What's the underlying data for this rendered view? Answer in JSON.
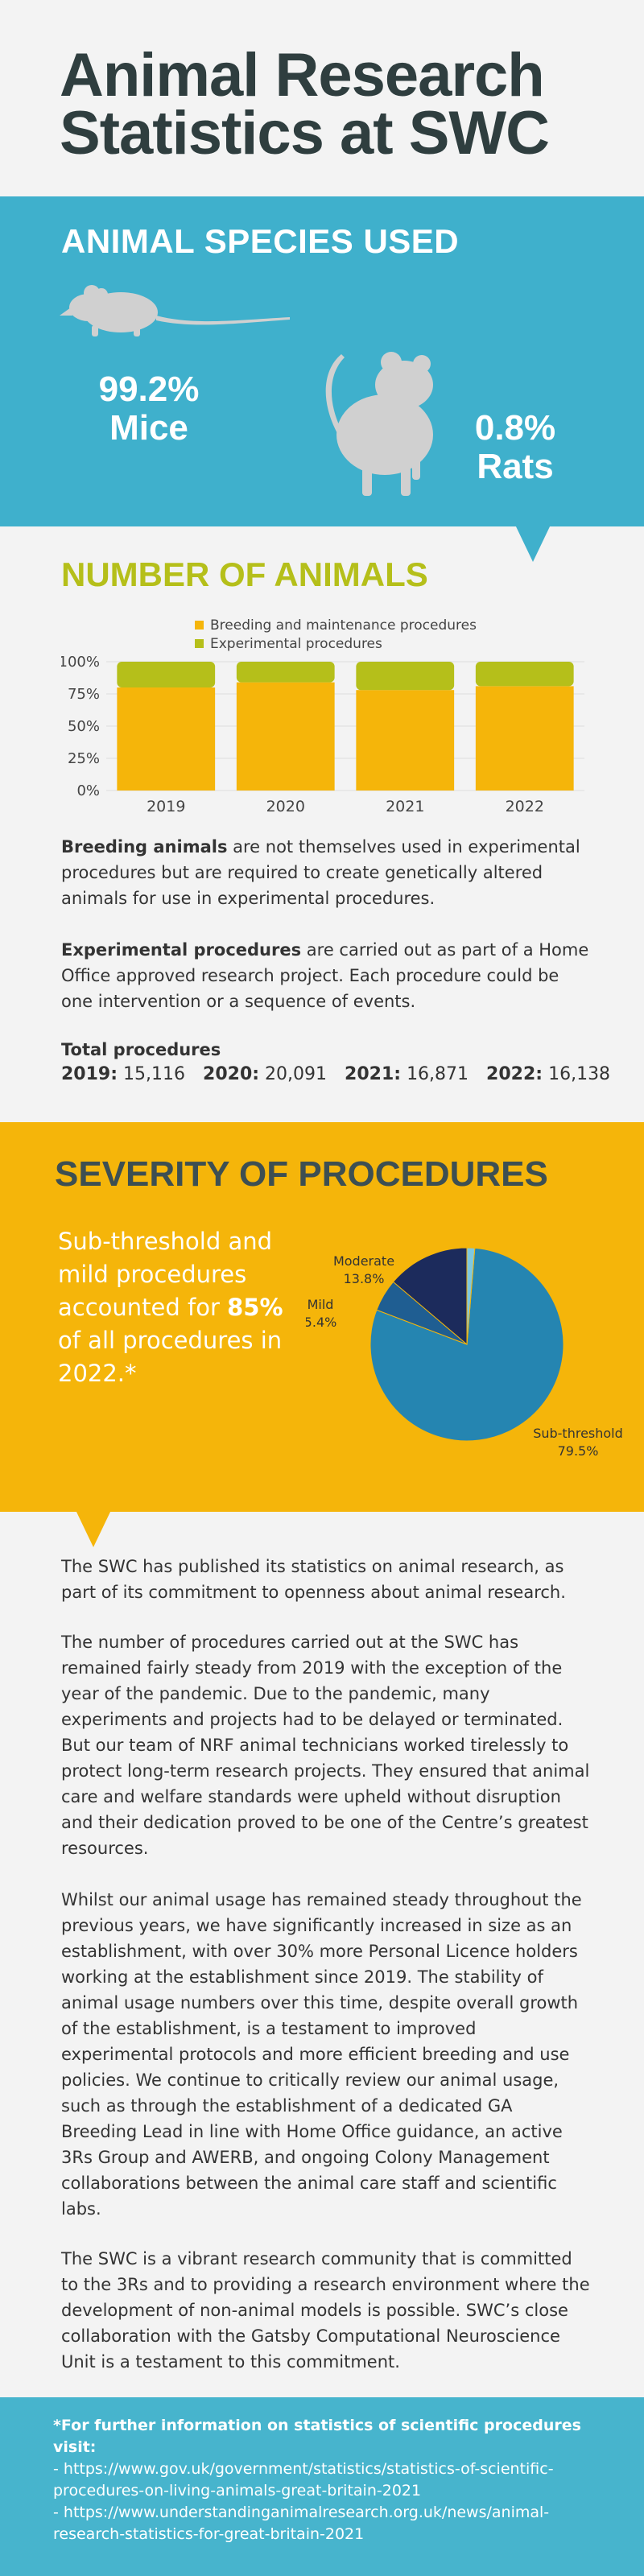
{
  "title": {
    "line1": "Animal Research",
    "line2": "Statistics at SWC"
  },
  "species": {
    "heading": "ANIMAL SPECIES USED",
    "mice_pct": "99.2%",
    "mice_label": "Mice",
    "rats_pct": "0.8%",
    "rats_label": "Rats",
    "icons": [
      "mouse-icon",
      "rat-icon"
    ]
  },
  "animals": {
    "heading": "NUMBER OF ANIMALS",
    "legend": [
      "Breeding and maintenance procedures",
      "Experimental procedures"
    ]
  },
  "chart_data": [
    {
      "type": "bar",
      "stacked": true,
      "percent": true,
      "categories": [
        "2019",
        "2020",
        "2021",
        "2022"
      ],
      "series": [
        {
          "name": "Breeding and maintenance procedures",
          "values": [
            80,
            84,
            78,
            81
          ],
          "color": "#f5b50a"
        },
        {
          "name": "Experimental procedures",
          "values": [
            20,
            16,
            22,
            19
          ],
          "color": "#b5bf1a"
        }
      ],
      "yticks": [
        "0%",
        "25%",
        "50%",
        "75%",
        "100%"
      ],
      "ylim": [
        0,
        100
      ]
    },
    {
      "type": "pie",
      "slices": [
        {
          "label": "Sub-threshold",
          "value": 79.5,
          "text": "79.5%",
          "color": "#2585b1"
        },
        {
          "label": "Mild",
          "value": 5.4,
          "text": "5.4%",
          "color": "#1f5e92"
        },
        {
          "label": "Moderate",
          "value": 13.8,
          "text": "13.8%",
          "color": "#1c2b5c"
        },
        {
          "label": "",
          "value": 1.3,
          "text": "",
          "color": "#7fc8e0"
        }
      ]
    }
  ],
  "breeding_text": {
    "bold": "Breeding animals",
    "rest": " are not themselves used in experimental procedures but are required to create genetically altered animals for use in experimental procedures."
  },
  "experimental_text": {
    "bold": "Experimental procedures",
    "rest": " are carried out as part of a Home Office approved research project. Each procedure could be one intervention or a sequence of events."
  },
  "totals": {
    "heading": "Total procedures",
    "items": [
      {
        "year": "2019:",
        "value": "15,116"
      },
      {
        "year": "2020:",
        "value": "20,091"
      },
      {
        "year": "2021:",
        "value": "16,871"
      },
      {
        "year": "2022:",
        "value": "16,138"
      }
    ]
  },
  "severity": {
    "heading": "SEVERITY OF PROCEDURES",
    "lead_before": "Sub-threshold and mild procedures accounted for ",
    "lead_big": "85%",
    "lead_after": " of all procedures in 2022.*"
  },
  "body": [
    "The SWC has published its statistics on animal research, as part of its commitment to openness about animal research.",
    "The number of procedures carried out at the SWC has remained fairly steady from 2019 with the exception of the year of the pandemic. Due to the pandemic, many experiments and projects had to be delayed or terminated. But our team of NRF animal technicians worked tirelessly to protect long-term research projects. They ensured that animal care and welfare standards were upheld without disruption and their dedication proved to be one of the Centre’s greatest resources.",
    "Whilst our animal usage has remained steady throughout the previous years, we have significantly increased in size as an establishment, with over 30% more Personal Licence holders working at the establishment since 2019. The stability of animal usage numbers over this time, despite overall growth of the establishment, is a testament to improved experimental protocols and more efficient breeding and use policies. We continue to critically review our animal usage, such as through the establishment of a dedicated GA Breeding Lead in line with Home Office guidance, an active 3Rs Group and AWERB, and ongoing Colony Management collaborations between the animal care staff and scientific labs.",
    "The SWC is a vibrant research community that is committed to the 3Rs and to providing a research environment where the development of non-animal models is possible. SWC’s close collaboration with the Gatsby Computational Neuroscience Unit is a testament to this commitment."
  ],
  "footer": {
    "heading": "*For further information on statistics of scientific procedures visit:",
    "links": [
      "- https://www.gov.uk/government/statistics/statistics-of-scientific-procedures-on-living-animals-great-britain-2021",
      "- https://www.understandinganimalresearch.org.uk/news/animal-research-statistics-for-great-britain-2021"
    ]
  },
  "colors": {
    "teal": "#3fb0cc",
    "yellow": "#f5b50a",
    "olive": "#b5bf1a",
    "dark": "#2f3e3f"
  }
}
